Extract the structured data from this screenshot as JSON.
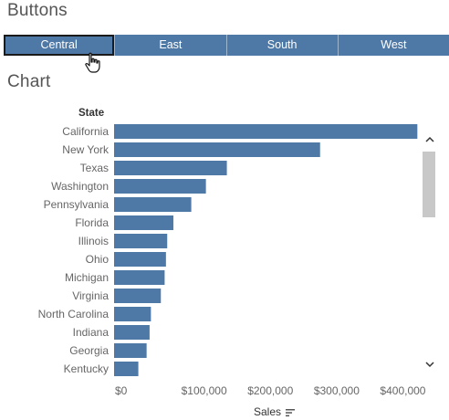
{
  "sections": {
    "buttons_title": "Buttons",
    "chart_title": "Chart"
  },
  "buttons": [
    {
      "label": "Central",
      "selected": true
    },
    {
      "label": "East",
      "selected": false
    },
    {
      "label": "South",
      "selected": false
    },
    {
      "label": "West",
      "selected": false
    }
  ],
  "colors": {
    "bar": "#4e79a7",
    "selected_outline": "#1a1a1a",
    "scrollbar_thumb": "#c8c8c8"
  },
  "chart_data": {
    "type": "bar",
    "orientation": "horizontal",
    "category_header": "State",
    "categories": [
      "California",
      "New York",
      "Texas",
      "Washington",
      "Pennsylvania",
      "Florida",
      "Illinois",
      "Ohio",
      "Michigan",
      "Virginia",
      "North Carolina",
      "Indiana",
      "Georgia",
      "Kentucky"
    ],
    "values": [
      457700,
      310900,
      170200,
      138600,
      116500,
      89500,
      80200,
      78300,
      76300,
      70600,
      55600,
      53600,
      49100,
      36600
    ],
    "xlabel": "Sales",
    "xlim": [
      0,
      460000
    ],
    "x_ticks": [
      0,
      100000,
      200000,
      300000,
      400000
    ],
    "x_tick_labels": [
      "$0",
      "$100,000",
      "$200,000",
      "$300,000",
      "$400,000"
    ],
    "sort": "descending",
    "grid": false,
    "legend": "none"
  },
  "scrollbar": {
    "visible": true,
    "up_icon": "chevron-up-icon",
    "down_icon": "chevron-down-icon"
  },
  "icons": {
    "cursor": "hand-pointer-icon",
    "sort": "sort-descending-icon"
  }
}
